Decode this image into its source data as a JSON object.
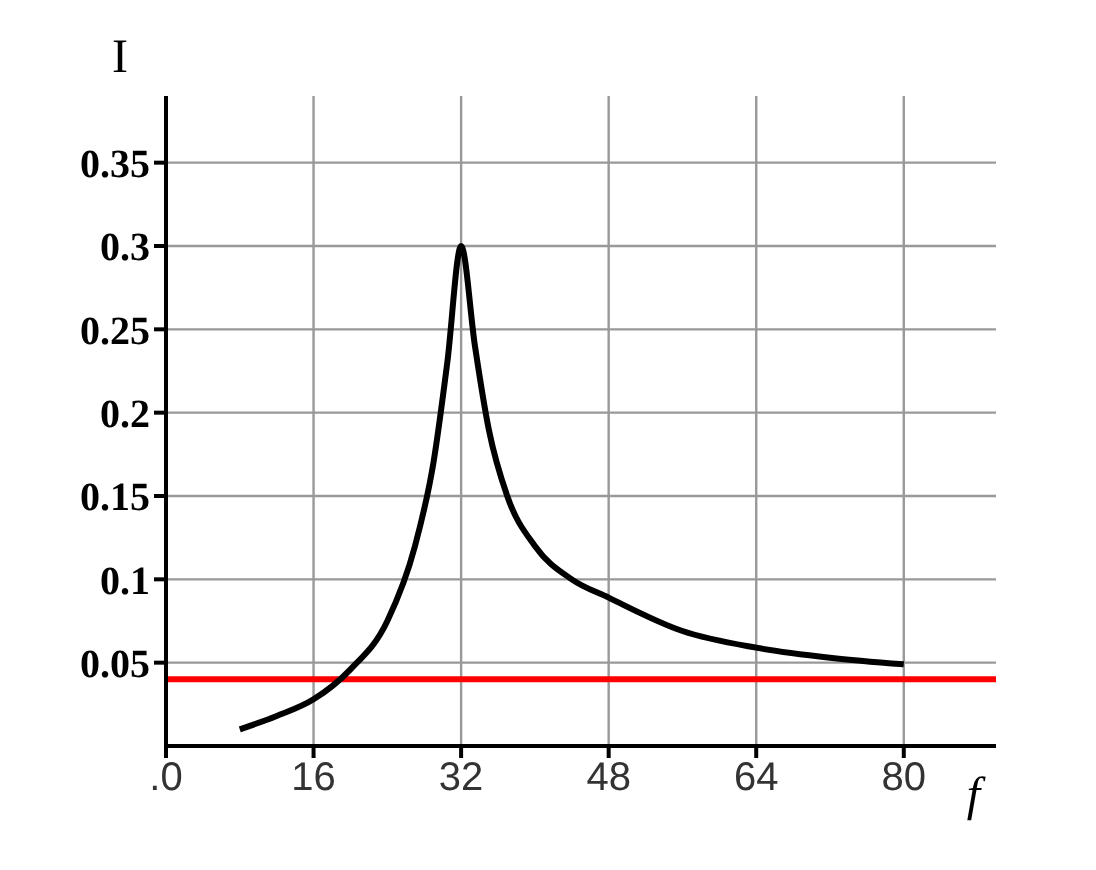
{
  "chart_data": {
    "type": "line",
    "xlabel": "f",
    "ylabel": "I",
    "x": [
      8,
      12,
      16,
      20,
      24,
      27,
      29,
      30.5,
      32,
      33.5,
      35,
      37,
      40,
      44,
      48,
      56,
      64,
      72,
      80
    ],
    "series": [
      {
        "color": "#000000",
        "values": [
          0.01,
          0.018,
          0.028,
          0.046,
          0.075,
          0.12,
          0.17,
          0.23,
          0.3,
          0.24,
          0.19,
          0.15,
          0.12,
          0.1,
          0.089,
          0.069,
          0.059,
          0.053,
          0.049
        ]
      }
    ],
    "xlim": [
      0,
      90
    ],
    "ylim": [
      0,
      0.39
    ],
    "xticks": [
      {
        "value": 0,
        "label": ".0"
      },
      16,
      32,
      48,
      64,
      80
    ],
    "yticks": [
      0.05,
      0.1,
      0.15,
      0.2,
      0.25,
      0.3,
      0.35
    ],
    "ref_lines": [
      {
        "axis": "y",
        "value": 0.04,
        "color": "#ff0000"
      }
    ],
    "grid": true,
    "marker": "none",
    "line_style": "solid"
  }
}
